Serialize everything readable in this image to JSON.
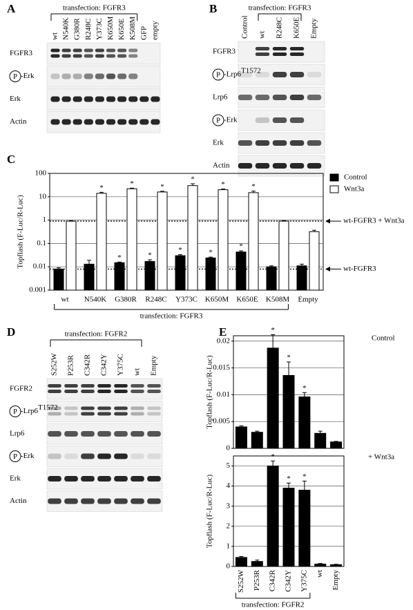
{
  "blots": [
    {
      "panel": "A",
      "group_label": "transfection: FGFR3",
      "lanes": [
        "wt",
        "N540K",
        "G380R",
        "R248C",
        "Y373C",
        "K650M",
        "K650E",
        "K508M",
        "GFP",
        "empty"
      ],
      "rows": [
        {
          "label": "FGFR3"
        },
        {
          "circle": "P",
          "label": "-Erk"
        },
        {
          "label": "Erk"
        },
        {
          "label": "Actin"
        }
      ]
    },
    {
      "panel": "B",
      "group_label": "transfection: FGFR3",
      "lanes": [
        "Control",
        "wt",
        "R248C",
        "K650E",
        "Empty"
      ],
      "rows": [
        {
          "label": "FGFR3"
        },
        {
          "circle": "P",
          "label": "-Lrp6",
          "sup": "T1572"
        },
        {
          "label": "Lrp6"
        },
        {
          "circle": "P",
          "label": "-Erk"
        },
        {
          "label": "Erk"
        },
        {
          "label": "Actin"
        }
      ]
    },
    {
      "panel": "D",
      "group_label": "transfection: FGFR2",
      "lanes": [
        "S252W",
        "P253R",
        "C342R",
        "C342Y",
        "Y375C",
        "wt",
        "Empty"
      ],
      "rows": [
        {
          "label": "FGFR2"
        },
        {
          "circle": "P",
          "label": "-Lrp6",
          "sup": "T1572"
        },
        {
          "label": "Lrp6"
        },
        {
          "circle": "P",
          "label": "-Erk"
        },
        {
          "label": "Erk"
        },
        {
          "label": "Actin"
        }
      ]
    }
  ],
  "chart_data": [
    {
      "panel": "C",
      "type": "bar",
      "log_scale": true,
      "grid": true,
      "legend": "right",
      "ylabel": "Topflash (F-Luc/R-Luc)",
      "group_label": "transfection: FGFR3",
      "categories": [
        "wt",
        "N540K",
        "G380R",
        "R248C",
        "Y373C",
        "K650M",
        "K650E",
        "K508M",
        "Empty"
      ],
      "series": [
        {
          "name": "Control",
          "color": "#000000",
          "values": [
            0.008,
            0.013,
            0.015,
            0.017,
            0.03,
            0.024,
            0.043,
            0.01,
            0.011
          ],
          "errors": [
            0.001,
            0.006,
            0.001,
            0.003,
            0.003,
            0.002,
            0.005,
            0.001,
            0.002
          ],
          "annotations": [
            null,
            null,
            "*",
            "*",
            "*",
            "*",
            "*",
            null,
            null
          ]
        },
        {
          "name": "Wnt3a",
          "color": "#ffffff",
          "values": [
            0.9,
            14,
            22,
            16,
            30,
            20,
            15,
            0.9,
            0.32
          ],
          "errors": [
            0.05,
            1.5,
            1.5,
            1.2,
            6,
            1.5,
            2.5,
            0.05,
            0.05
          ],
          "annotations": [
            null,
            "*",
            "*",
            "*",
            "*",
            "*",
            "*",
            null,
            null
          ]
        }
      ],
      "reference_lines": [
        {
          "value": 0.9,
          "label": "wt-FGFR3 + Wnt3a"
        },
        {
          "value": 0.008,
          "label": "wt-FGFR3"
        }
      ],
      "ylim": [
        0.001,
        100
      ],
      "yticks": [
        0.001,
        0.01,
        0.1,
        1,
        10,
        100
      ]
    },
    {
      "panel": "E",
      "type": "bar",
      "grid": true,
      "condition": "Control",
      "ylabel": "Topflash (F-Luc/R-Luc)",
      "series": [
        {
          "color": "#000000",
          "values": [
            0.004,
            0.003,
            0.0187,
            0.0136,
            0.0096,
            0.0028,
            0.0012
          ],
          "errors": [
            0.0002,
            0.0002,
            0.0025,
            0.0025,
            0.0008,
            0.0004,
            0.0001
          ],
          "annotations": [
            null,
            null,
            "*",
            "*",
            "*",
            null,
            null
          ]
        }
      ],
      "ylim": [
        0,
        0.021
      ],
      "yticks": [
        0,
        0.005,
        0.01,
        0.015,
        0.02
      ]
    },
    {
      "type": "bar",
      "grid": true,
      "condition": "+ Wnt3a",
      "ylabel": "Topflash (F-Luc/R-Luc)",
      "group_label": "transfection: FGFR2",
      "categories": [
        "S252W",
        "P253R",
        "C342R",
        "C342Y",
        "Y375C",
        "wt",
        "Empty"
      ],
      "series": [
        {
          "color": "#000000",
          "values": [
            0.45,
            0.25,
            5.0,
            3.9,
            3.8,
            0.12,
            0.09
          ],
          "errors": [
            0.05,
            0.07,
            0.25,
            0.25,
            0.45,
            0.03,
            0.02
          ],
          "annotations": [
            null,
            null,
            "*",
            "*",
            "*",
            null,
            null
          ]
        }
      ],
      "ylim": [
        0,
        5.5
      ],
      "yticks": [
        0,
        1,
        2,
        3,
        4,
        5
      ]
    }
  ]
}
